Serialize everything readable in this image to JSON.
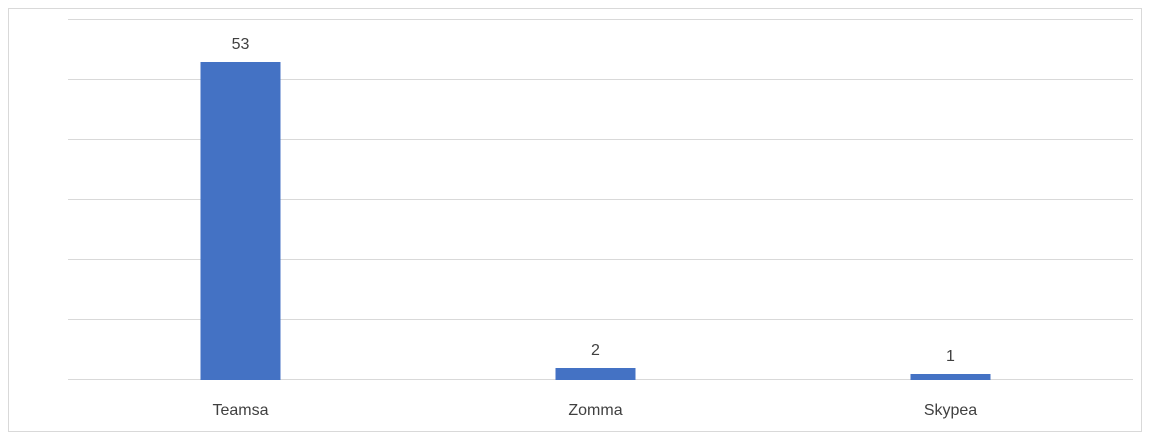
{
  "chart_data": {
    "type": "bar",
    "categories": [
      "Teamsa",
      "Zomma",
      "Skypea"
    ],
    "values": [
      53,
      2,
      1
    ],
    "color": "#4472c4",
    "ylim": [
      0,
      60
    ],
    "yticks": [
      0,
      10,
      20,
      30,
      40,
      50,
      60
    ],
    "grid": true
  }
}
